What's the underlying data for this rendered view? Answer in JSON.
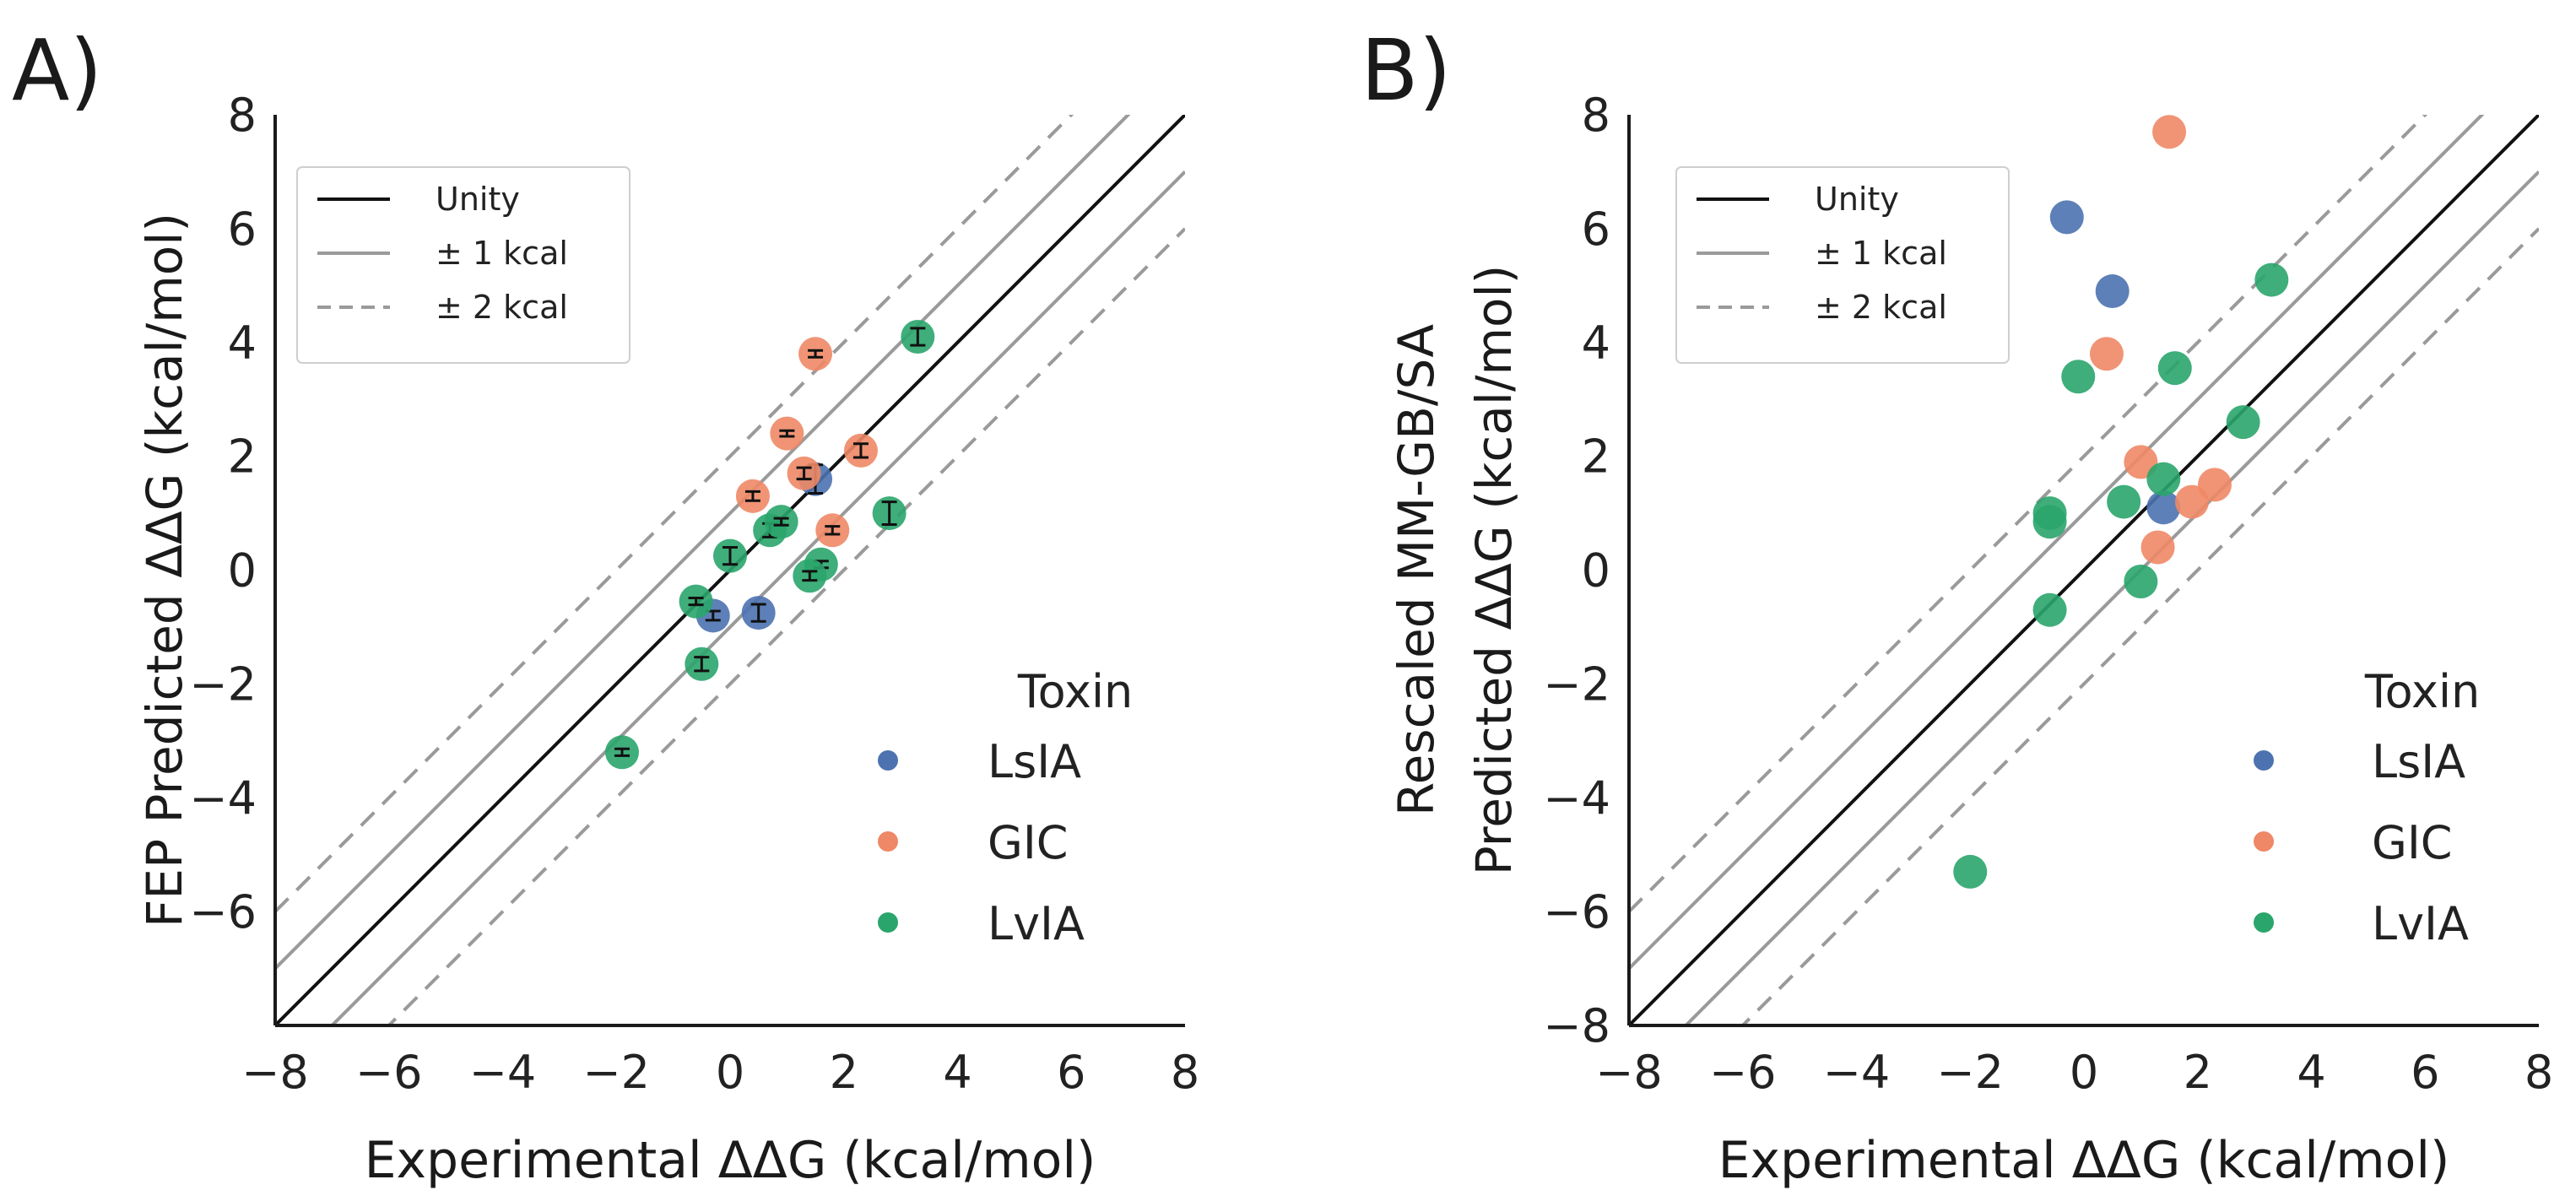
{
  "chart_data": [
    {
      "panel_label": "A)",
      "type": "scatter",
      "title": "",
      "xlabel": "Experimental ΔΔG (kcal/mol)",
      "ylabel_lines": [
        "FEP Predicted ΔΔG (kcal/mol)"
      ],
      "xlim": [
        -8,
        8
      ],
      "ylim": [
        -8,
        8
      ],
      "xticks": [
        -8,
        -6,
        -4,
        -2,
        0,
        2,
        4,
        6,
        8
      ],
      "yticks": [
        -6,
        -4,
        -2,
        0,
        2,
        4,
        6,
        8
      ],
      "xtick_labels": [
        "−8",
        "−6",
        "−4",
        "−2",
        "0",
        "2",
        "4",
        "6",
        "8"
      ],
      "ytick_labels": [
        "−6",
        "−4",
        "−2",
        "0",
        "2",
        "4",
        "6",
        "8"
      ],
      "error_bars": true,
      "reference_lines": [
        {
          "label": "Unity",
          "offset": 0
        },
        {
          "label": "± 1 kcal",
          "offset": 1
        },
        {
          "label": "± 2 kcal",
          "offset": 2
        }
      ],
      "legend_title": "Toxin",
      "series": [
        {
          "name": "LsIA",
          "color": "#4c72b0",
          "points": [
            [
              -0.3,
              -0.8,
              0.08
            ],
            [
              0.5,
              -0.75,
              0.15
            ],
            [
              1.5,
              1.6,
              0.25
            ]
          ]
        },
        {
          "name": "GIC",
          "color": "#ee8866",
          "points": [
            [
              1.5,
              3.8,
              0.06
            ],
            [
              1.0,
              2.4,
              0.05
            ],
            [
              2.3,
              2.1,
              0.12
            ],
            [
              0.4,
              1.3,
              0.08
            ],
            [
              1.3,
              1.7,
              0.1
            ],
            [
              1.8,
              0.7,
              0.07
            ]
          ]
        },
        {
          "name": "LvIA",
          "color": "#2aa56b",
          "points": [
            [
              3.3,
              4.1,
              0.15
            ],
            [
              2.8,
              1.0,
              0.2
            ],
            [
              0.7,
              0.7,
              0.12
            ],
            [
              0.9,
              0.85,
              0.06
            ],
            [
              0.0,
              0.25,
              0.15
            ],
            [
              1.6,
              0.1,
              0.06
            ],
            [
              1.4,
              -0.1,
              0.08
            ],
            [
              -0.6,
              -0.55,
              0.06
            ],
            [
              -0.5,
              -1.65,
              0.12
            ],
            [
              -1.9,
              -3.2,
              0.06
            ]
          ]
        }
      ]
    },
    {
      "panel_label": "B)",
      "type": "scatter",
      "title": "",
      "xlabel": "Experimental ΔΔG (kcal/mol)",
      "ylabel_lines": [
        "Rescaled MM-GB/SA",
        "Predicted ΔΔG (kcal/mol)"
      ],
      "xlim": [
        -8,
        8
      ],
      "ylim": [
        -8,
        8
      ],
      "xticks": [
        -8,
        -6,
        -4,
        -2,
        0,
        2,
        4,
        6,
        8
      ],
      "yticks": [
        -8,
        -6,
        -4,
        -2,
        0,
        2,
        4,
        6,
        8
      ],
      "xtick_labels": [
        "−8",
        "−6",
        "−4",
        "−2",
        "0",
        "2",
        "4",
        "6",
        "8"
      ],
      "ytick_labels": [
        "−8",
        "−6",
        "−4",
        "−2",
        "0",
        "2",
        "4",
        "6",
        "8"
      ],
      "error_bars": false,
      "reference_lines": [
        {
          "label": "Unity",
          "offset": 0
        },
        {
          "label": "± 1 kcal",
          "offset": 1
        },
        {
          "label": "± 2 kcal",
          "offset": 2
        }
      ],
      "legend_title": "Toxin",
      "series": [
        {
          "name": "LsIA",
          "color": "#4c72b0",
          "points": [
            [
              -0.3,
              6.2
            ],
            [
              0.5,
              4.9
            ],
            [
              1.4,
              1.1
            ]
          ]
        },
        {
          "name": "GIC",
          "color": "#ee8866",
          "points": [
            [
              1.5,
              7.7
            ],
            [
              0.4,
              3.8
            ],
            [
              1.0,
              1.9
            ],
            [
              2.3,
              1.5
            ],
            [
              1.9,
              1.2
            ],
            [
              1.3,
              0.4
            ]
          ]
        },
        {
          "name": "LvIA",
          "color": "#2aa56b",
          "points": [
            [
              3.3,
              5.1
            ],
            [
              -0.1,
              3.4
            ],
            [
              1.6,
              3.55
            ],
            [
              2.8,
              2.6
            ],
            [
              1.4,
              1.6
            ],
            [
              0.7,
              1.2
            ],
            [
              -0.6,
              1.0
            ],
            [
              -0.6,
              0.85
            ],
            [
              1.0,
              -0.2
            ],
            [
              -0.6,
              -0.7
            ],
            [
              -2.0,
              -5.3
            ]
          ]
        }
      ]
    }
  ]
}
